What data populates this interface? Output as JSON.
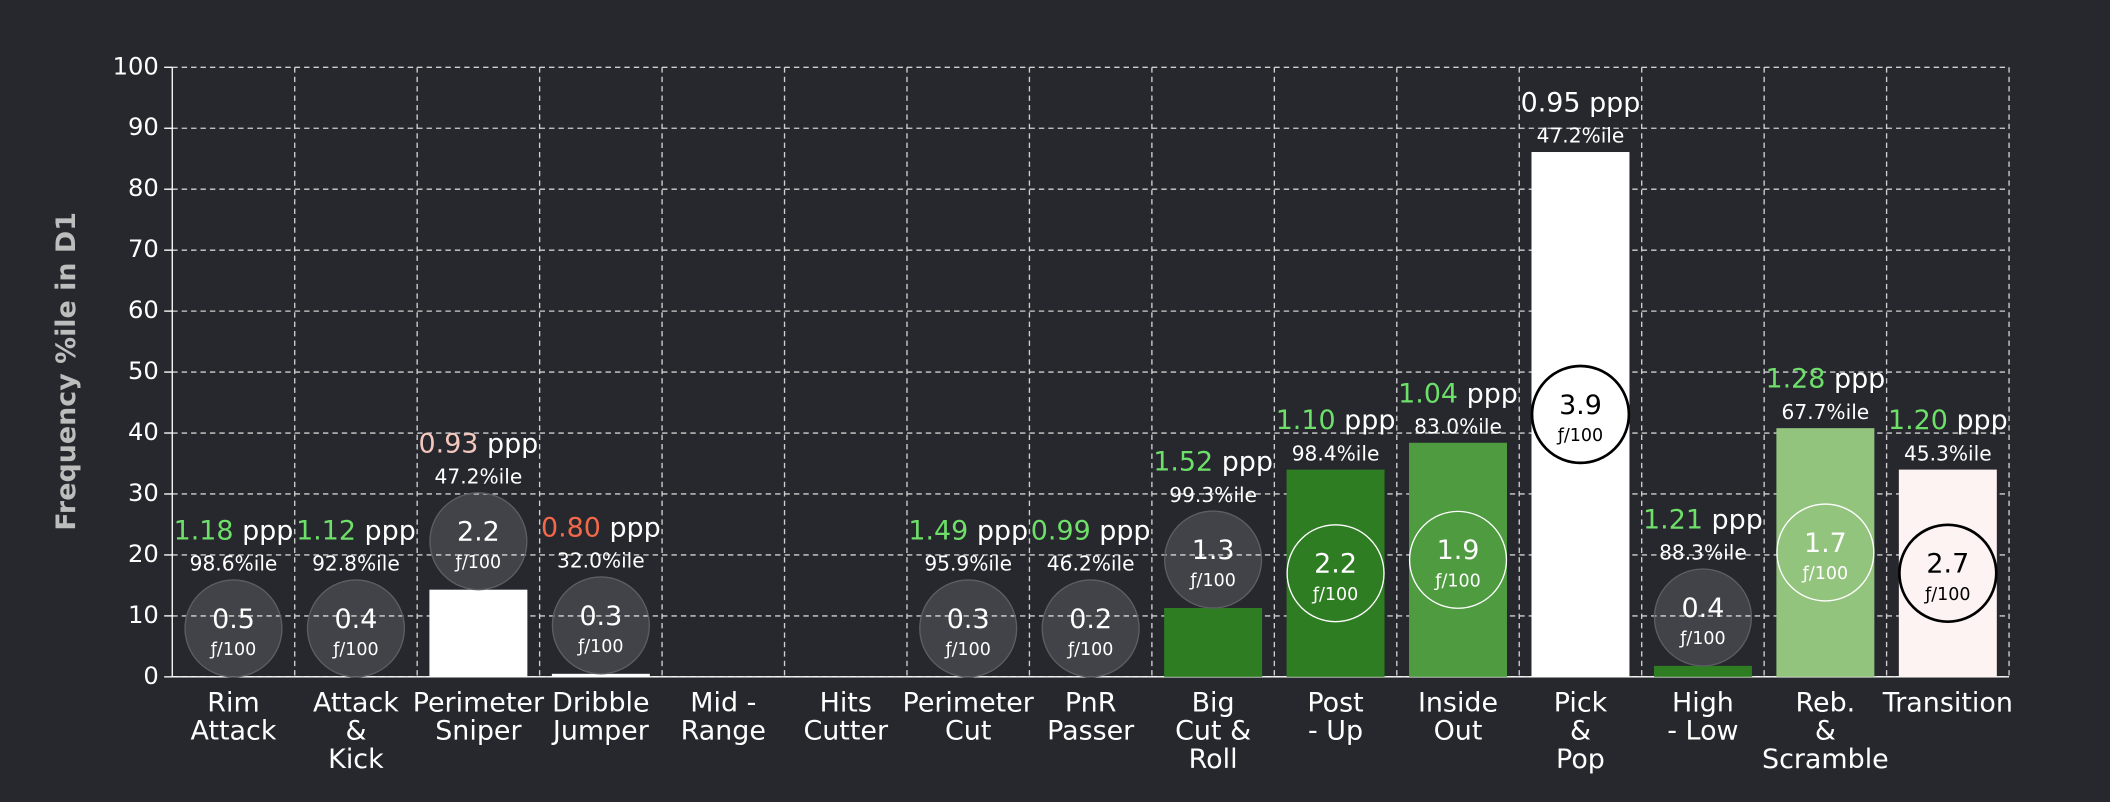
{
  "chart_data": {
    "type": "bar",
    "y_label": "Frequency %ile in D1",
    "categories": [
      [
        "Rim",
        "Attack"
      ],
      [
        "Attack",
        "&",
        "Kick"
      ],
      [
        "Perimeter",
        "Sniper"
      ],
      [
        "Dribble",
        "Jumper"
      ],
      [
        "Mid -",
        "Range"
      ],
      [
        "Hits",
        "Cutter"
      ],
      [
        "Perimeter",
        "Cut"
      ],
      [
        "PnR",
        "Passer"
      ],
      [
        "Big",
        "Cut &",
        "Roll"
      ],
      [
        "Post",
        "- Up"
      ],
      [
        "Inside",
        "Out"
      ],
      [
        "Pick",
        "&",
        "Pop"
      ],
      [
        "High",
        "- Low"
      ],
      [
        "Reb.",
        "&",
        "Scramble"
      ],
      [
        "Transition"
      ]
    ],
    "values": [
      0,
      0,
      14.3,
      0.5,
      null,
      null,
      0,
      0,
      11.3,
      34,
      38.4,
      86.1,
      1.8,
      40.8,
      34
    ],
    "colors": [
      "#ffffff",
      "#ffffff",
      "#ffffff",
      "#ffffff",
      null,
      null,
      "#ffffff",
      "#ffffff",
      "#2e7d22",
      "#2e7d22",
      "#4e9b40",
      "#ffffff",
      "#2e7d22",
      "#93c47d",
      "#fdf3f3"
    ],
    "frequency": [
      0.5,
      0.4,
      2.2,
      0.3,
      null,
      null,
      0.3,
      0.2,
      1.3,
      2.2,
      1.9,
      3.9,
      0.4,
      1.7,
      2.7
    ],
    "frequency_unit": "ƒ/100",
    "ppp": [
      "1.18",
      "1.12",
      "0.93",
      "0.80",
      null,
      null,
      "1.49",
      "0.99",
      "1.52",
      "1.10",
      "1.04",
      "0.95",
      "1.21",
      "1.28",
      "1.20"
    ],
    "ppp_colors": [
      "#6ee06a",
      "#6ee06a",
      "#f4c7bd",
      "#f2694a",
      null,
      null,
      "#6ee06a",
      "#6ee06a",
      "#6ee06a",
      "#6ee06a",
      "#6ee06a",
      "#ffffff",
      "#6ee06a",
      "#6ee06a",
      "#6ee06a"
    ],
    "ppp_unit": "ppp",
    "ppp_percentile": [
      "98.6%ile",
      "92.8%ile",
      "47.2%ile",
      "32.0%ile",
      null,
      null,
      "95.9%ile",
      "46.2%ile",
      "99.3%ile",
      "98.4%ile",
      "83.0%ile",
      "47.2%ile",
      "88.3%ile",
      "67.7%ile",
      "45.3%ile"
    ],
    "ylim": [
      0,
      100
    ],
    "yticks": [
      0,
      10,
      20,
      30,
      40,
      50,
      60,
      70,
      80,
      90,
      100
    ],
    "grid": true
  }
}
